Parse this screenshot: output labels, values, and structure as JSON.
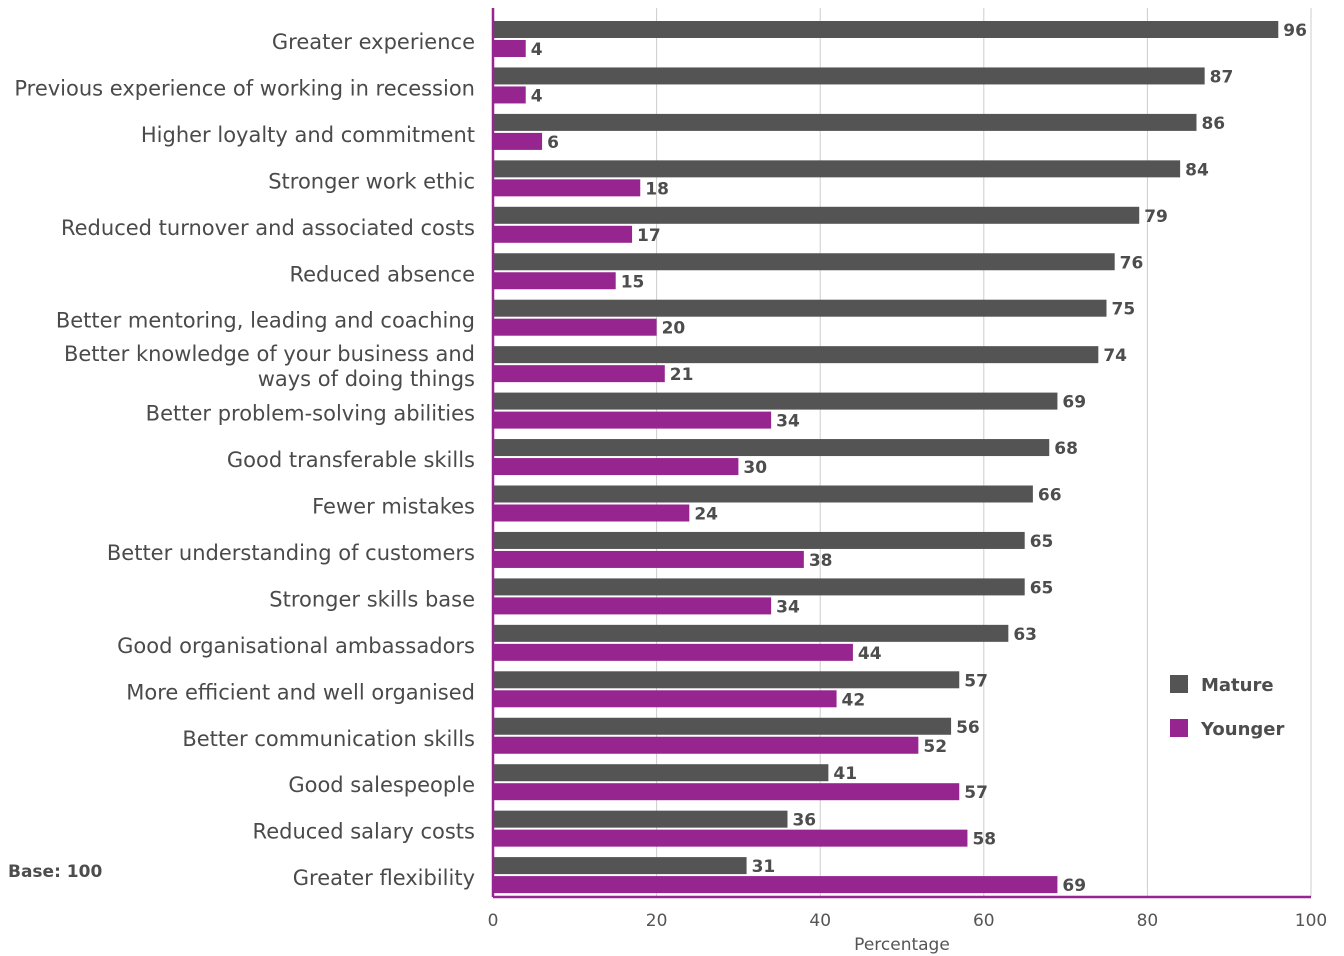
{
  "base_note": "Base: 100",
  "colors": {
    "mature": "#545454",
    "younger": "#962590",
    "axis": "#962590",
    "grid": "#cccccc"
  },
  "chart_data": {
    "type": "bar",
    "orientation": "horizontal",
    "categories": [
      "Greater experience",
      "Previous experience of working in recession",
      "Higher loyalty and commitment",
      "Stronger work ethic",
      "Reduced turnover and associated costs",
      "Reduced absence",
      "Better mentoring, leading and coaching",
      "Better knowledge of your business and\nways of doing things",
      "Better problem-solving abilities",
      "Good transferable skills",
      "Fewer mistakes",
      "Better understanding of customers",
      "Stronger skills base",
      "Good organisational ambassadors",
      "More efficient and well organised",
      "Better communication skills",
      "Good salespeople",
      "Reduced salary costs",
      "Greater flexibility"
    ],
    "series": [
      {
        "name": "Mature",
        "values": [
          96,
          87,
          86,
          84,
          79,
          76,
          75,
          74,
          69,
          68,
          66,
          65,
          65,
          63,
          57,
          56,
          41,
          36,
          31
        ]
      },
      {
        "name": "Younger",
        "values": [
          4,
          4,
          6,
          18,
          17,
          15,
          20,
          21,
          34,
          30,
          24,
          38,
          34,
          44,
          42,
          52,
          57,
          58,
          69
        ]
      }
    ],
    "xlabel": "Percentage",
    "xlim": [
      0,
      100
    ],
    "xticks": [
      0,
      20,
      40,
      60,
      80,
      100
    ],
    "grid": "vertical",
    "legend_position": "right"
  }
}
